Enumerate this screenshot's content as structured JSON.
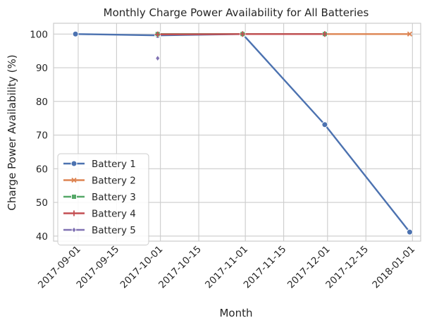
{
  "chart_data": {
    "type": "line",
    "title": "Monthly Charge Power Availability for All Batteries",
    "xlabel": "Month",
    "ylabel": "Charge Power Availability (%)",
    "x_range": [
      "2017-08-23",
      "2018-01-04"
    ],
    "ylim": [
      38.5,
      103.2
    ],
    "xticks": [
      "2017-09-01",
      "2017-09-15",
      "2017-10-01",
      "2017-10-15",
      "2017-11-01",
      "2017-11-15",
      "2017-12-01",
      "2017-12-15",
      "2018-01-01"
    ],
    "yticks": [
      40,
      50,
      60,
      70,
      80,
      90,
      100
    ],
    "grid": true,
    "legend_position": "lower-left",
    "series": [
      {
        "name": "Battery 1",
        "color": "#4c72b0",
        "marker": "circle",
        "points": [
          {
            "x": "2017-08-31",
            "y": 100.0
          },
          {
            "x": "2017-09-30",
            "y": 99.6
          },
          {
            "x": "2017-10-31",
            "y": 100.0
          },
          {
            "x": "2017-11-30",
            "y": 73.1
          },
          {
            "x": "2017-12-31",
            "y": 41.2
          }
        ]
      },
      {
        "name": "Battery 2",
        "color": "#dd8452",
        "marker": "x",
        "points": [
          {
            "x": "2017-09-30",
            "y": 100.0
          },
          {
            "x": "2017-10-31",
            "y": 100.0
          },
          {
            "x": "2017-11-30",
            "y": 100.0
          },
          {
            "x": "2017-12-31",
            "y": 100.0
          }
        ]
      },
      {
        "name": "Battery 3",
        "color": "#55a868",
        "marker": "square",
        "points": [
          {
            "x": "2017-09-30",
            "y": 100.0
          },
          {
            "x": "2017-10-31",
            "y": 100.0
          },
          {
            "x": "2017-11-30",
            "y": 100.0
          }
        ]
      },
      {
        "name": "Battery 4",
        "color": "#c44e52",
        "marker": "plus",
        "points": [
          {
            "x": "2017-09-30",
            "y": 99.9
          },
          {
            "x": "2017-10-31",
            "y": 100.0
          },
          {
            "x": "2017-11-30",
            "y": 100.0
          }
        ]
      },
      {
        "name": "Battery 5",
        "color": "#8172b3",
        "marker": "diamond",
        "points": [
          {
            "x": "2017-09-30",
            "y": 92.8
          }
        ]
      }
    ]
  }
}
